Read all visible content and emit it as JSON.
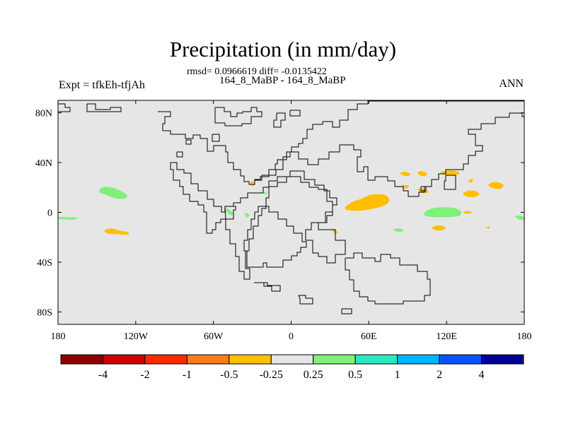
{
  "header": {
    "title": "Precipitation (in mm/day)",
    "stats": "rmsd= 0.0966619 diff= -0.0135422",
    "cases": "164_8_MaBP - 164_8_MaBP",
    "expt": "Expt = tfkEh-tfjAh",
    "season": "ANN"
  },
  "axes": {
    "x_ticks": [
      {
        "value": -180,
        "label": "180"
      },
      {
        "value": -120,
        "label": "120W"
      },
      {
        "value": -60,
        "label": "60W"
      },
      {
        "value": 0,
        "label": "0"
      },
      {
        "value": 60,
        "label": "60E"
      },
      {
        "value": 120,
        "label": "120E"
      },
      {
        "value": 180,
        "label": "180"
      }
    ],
    "y_ticks": [
      {
        "value": 80,
        "label": "80N"
      },
      {
        "value": 40,
        "label": "40N"
      },
      {
        "value": 0,
        "label": "0"
      },
      {
        "value": -40,
        "label": "40S"
      },
      {
        "value": -80,
        "label": "80S"
      }
    ]
  },
  "colorbar": {
    "colors": [
      "#8b0000",
      "#cc0000",
      "#ff2a00",
      "#ff7a1a",
      "#ffbf00",
      "#e6e6e6",
      "#80f07a",
      "#29e8c0",
      "#00b4ff",
      "#0a52ff",
      "#000090"
    ],
    "labels": [
      "-4",
      "-2",
      "-1",
      "-0.5",
      "-0.25",
      "0.25",
      "0.5",
      "1",
      "2",
      "4"
    ]
  },
  "map": {
    "background": "#e6e6e6",
    "anomalies": [
      {
        "lon": -153,
        "lat": 13,
        "class": "0.5",
        "color": "#80f07a"
      },
      {
        "lon": -150,
        "lat": -17,
        "class": "-0.5",
        "color": "#ffbf00"
      },
      {
        "lon": -177,
        "lat": -7,
        "class": "0.5",
        "color": "#80f07a"
      },
      {
        "lon": -46,
        "lat": -5,
        "class": "0.5",
        "color": "#80f07a"
      },
      {
        "lon": -34,
        "lat": -5,
        "class": "0.5",
        "color": "#80f07a"
      },
      {
        "lon": -32,
        "lat": 19,
        "class": "-0.5",
        "color": "#ffbf00"
      },
      {
        "lon": -19,
        "lat": 12,
        "class": "0.5",
        "color": "#80f07a"
      },
      {
        "lon": 68,
        "lat": 5,
        "class": "-0.5",
        "color": "#ffbf00"
      },
      {
        "lon": 35,
        "lat": -17,
        "class": "-0.5",
        "color": "#ffbf00"
      },
      {
        "lon": 88,
        "lat": 27,
        "class": "-0.5",
        "color": "#ffbf00"
      },
      {
        "lon": 100,
        "lat": 27,
        "class": "-0.5",
        "color": "#ffbf00"
      },
      {
        "lon": 125,
        "lat": 27,
        "class": "-0.5",
        "color": "#ffbf00"
      },
      {
        "lon": 136,
        "lat": 27,
        "class": "-0.5",
        "color": "#ffbf00"
      },
      {
        "lon": 103,
        "lat": 14,
        "class": "-0.5",
        "color": "#ffbf00"
      },
      {
        "lon": 92,
        "lat": 17,
        "class": "-0.5",
        "color": "#ffbf00"
      },
      {
        "lon": 120,
        "lat": -3,
        "class": "0.5",
        "color": "#80f07a"
      },
      {
        "lon": 140,
        "lat": 10,
        "class": "-0.5",
        "color": "#ffbf00"
      },
      {
        "lon": 156,
        "lat": 18,
        "class": "-0.5",
        "color": "#ffbf00"
      },
      {
        "lon": 117,
        "lat": -16,
        "class": "-0.5",
        "color": "#ffbf00"
      },
      {
        "lon": 85,
        "lat": -17,
        "class": "0.5",
        "color": "#80f07a"
      },
      {
        "lon": 147,
        "lat": -4,
        "class": "-0.5",
        "color": "#ffbf00"
      },
      {
        "lon": 178,
        "lat": -7,
        "class": "0.5",
        "color": "#80f07a"
      },
      {
        "lon": 75,
        "lat": 5,
        "class": "-0.5",
        "color": "#ffbf00"
      }
    ]
  }
}
